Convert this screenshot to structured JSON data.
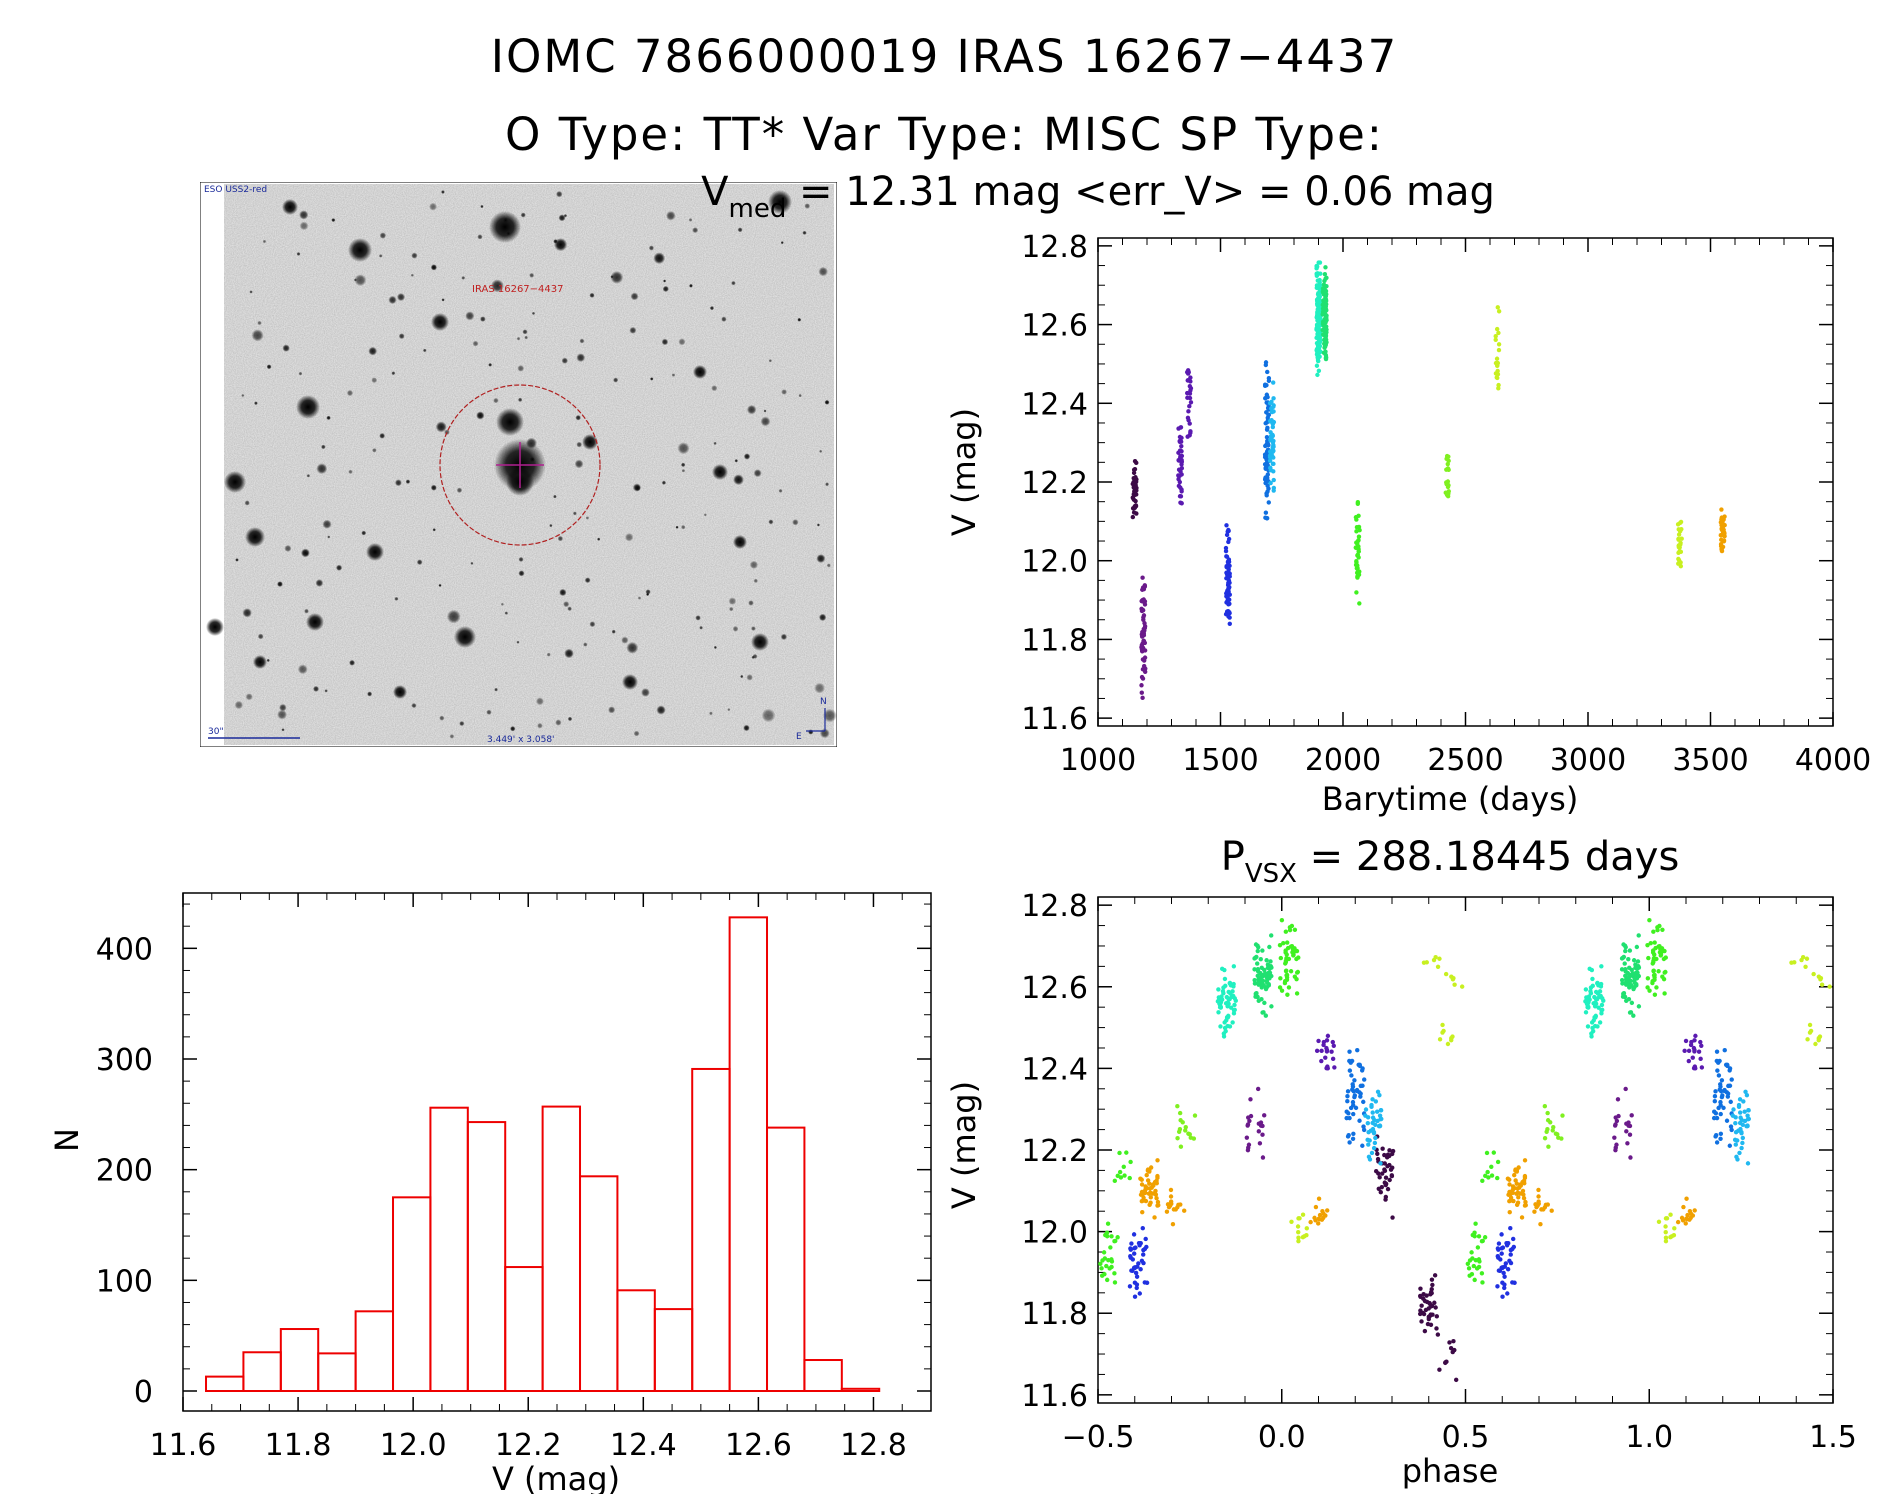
{
  "header": {
    "object_ids": "IOMC 7866000019    IRAS 16267−4437",
    "types": "O Type: TT*  Var Type: MISC  SP Type:"
  },
  "finder": {
    "survey_label": "ESO USS2-red",
    "target_label": "IRAS 16267−4437",
    "scale_label": "30\"",
    "fov_label": "3.449' x 3.058'",
    "compass_n": "N",
    "compass_e": "E"
  },
  "colors": {
    "histogram": "#ee0000",
    "epochs": [
      "#3c0a46",
      "#6a1a8a",
      "#5a1ab0",
      "#2030e0",
      "#1070e0",
      "#20b8f0",
      "#20f0c0",
      "#20e070",
      "#40f020",
      "#80f020",
      "#c8f020",
      "#f0a000"
    ]
  },
  "chart_data": [
    {
      "id": "light-curve",
      "type": "scatter",
      "title_prefix": "V",
      "title_sub": "med",
      "title_rest": " = 12.31 mag <err_V> = 0.06 mag",
      "xlabel": "Barytime (days)",
      "ylabel": "V (mag)",
      "xlim": [
        1000,
        4000
      ],
      "ylim": [
        12.82,
        11.58
      ],
      "xticks": [
        "1000",
        "1500",
        "2000",
        "2500",
        "3000",
        "3500",
        "4000"
      ],
      "yticks": [
        "11.6",
        "11.8",
        "12.0",
        "12.2",
        "12.4",
        "12.6",
        "12.8"
      ],
      "clusters": [
        {
          "t": 1150,
          "v0": 12.08,
          "v1": 12.27,
          "n": 40,
          "c": 0
        },
        {
          "t": 1185,
          "v0": 11.65,
          "v1": 11.96,
          "n": 55,
          "c": 1
        },
        {
          "t": 1335,
          "v0": 12.13,
          "v1": 12.37,
          "n": 40,
          "c": 2
        },
        {
          "t": 1372,
          "v0": 12.3,
          "v1": 12.51,
          "n": 25,
          "c": 2
        },
        {
          "t": 1530,
          "v0": 11.82,
          "v1": 12.1,
          "n": 70,
          "c": 3
        },
        {
          "t": 1690,
          "v0": 12.08,
          "v1": 12.53,
          "n": 70,
          "c": 4
        },
        {
          "t": 1710,
          "v0": 12.15,
          "v1": 12.48,
          "n": 50,
          "c": 5
        },
        {
          "t": 1900,
          "v0": 12.46,
          "v1": 12.77,
          "n": 150,
          "c": 6
        },
        {
          "t": 1925,
          "v0": 12.49,
          "v1": 12.75,
          "n": 100,
          "c": 7
        },
        {
          "t": 2060,
          "v0": 11.86,
          "v1": 12.17,
          "n": 40,
          "c": 8
        },
        {
          "t": 2425,
          "v0": 12.15,
          "v1": 12.29,
          "n": 20,
          "c": 9
        },
        {
          "t": 2630,
          "v0": 12.43,
          "v1": 12.67,
          "n": 20,
          "c": 10
        },
        {
          "t": 3375,
          "v0": 11.96,
          "v1": 12.11,
          "n": 25,
          "c": 10
        },
        {
          "t": 3550,
          "v0": 12.01,
          "v1": 12.15,
          "n": 40,
          "c": 11
        }
      ]
    },
    {
      "id": "histogram",
      "type": "bar",
      "xlabel": "V (mag)",
      "ylabel": "N",
      "xlim": [
        11.6,
        12.9
      ],
      "ylim": [
        0,
        450
      ],
      "bin_edges": [
        11.64,
        11.705,
        11.77,
        11.835,
        11.9,
        11.965,
        12.03,
        12.095,
        12.16,
        12.225,
        12.29,
        12.355,
        12.42,
        12.485,
        12.55,
        12.615,
        12.68,
        12.745,
        12.81
      ],
      "counts": [
        13,
        35,
        56,
        34,
        72,
        175,
        256,
        243,
        112,
        257,
        194,
        91,
        74,
        291,
        428,
        238,
        28,
        2
      ],
      "xticks": [
        "11.6",
        "11.8",
        "12.0",
        "12.2",
        "12.4",
        "12.6",
        "12.8"
      ],
      "yticks": [
        "0",
        "100",
        "200",
        "300",
        "400"
      ]
    },
    {
      "id": "phase-curve",
      "type": "scatter",
      "title_prefix": "P",
      "title_sub": "VSX",
      "title_rest": " = 288.18445 days",
      "xlabel": "phase",
      "ylabel": "V (mag)",
      "period_days": 288.18445,
      "xlim": [
        -0.5,
        1.5
      ],
      "ylim": [
        12.82,
        11.58
      ],
      "xticks": [
        "−0.5",
        "0.0",
        "0.5",
        "1.0",
        "1.5"
      ],
      "yticks": [
        "11.6",
        "11.8",
        "12.0",
        "12.2",
        "12.4",
        "12.6",
        "12.8"
      ],
      "clusters": [
        {
          "p": 0.4,
          "v0": 11.72,
          "v1": 11.9,
          "n": 40,
          "c": 0
        },
        {
          "p": 0.45,
          "v0": 11.62,
          "v1": 11.75,
          "n": 10,
          "c": 0
        },
        {
          "p": 0.28,
          "v0": 12.03,
          "v1": 12.26,
          "n": 40,
          "c": 0
        },
        {
          "p": 0.61,
          "v0": 11.83,
          "v1": 12.03,
          "n": 40,
          "c": 3
        },
        {
          "p": 0.64,
          "v0": 12.03,
          "v1": 12.18,
          "n": 50,
          "c": 11
        },
        {
          "p": 0.71,
          "v0": 12.01,
          "v1": 12.11,
          "n": 15,
          "c": 11
        },
        {
          "p": 0.53,
          "v0": 11.85,
          "v1": 12.05,
          "n": 25,
          "c": 8
        },
        {
          "p": 0.57,
          "v0": 12.05,
          "v1": 12.2,
          "n": 10,
          "c": 8
        },
        {
          "p": 0.74,
          "v0": 12.2,
          "v1": 12.32,
          "n": 15,
          "c": 9
        },
        {
          "p": 1.05,
          "v0": 11.96,
          "v1": 12.05,
          "n": 12,
          "c": 10
        },
        {
          "p": 1.1,
          "v0": 11.98,
          "v1": 12.1,
          "n": 15,
          "c": 11
        },
        {
          "p": 0.93,
          "v0": 12.15,
          "v1": 12.38,
          "n": 20,
          "c": 1
        },
        {
          "p": 1.12,
          "v0": 12.38,
          "v1": 12.51,
          "n": 20,
          "c": 2
        },
        {
          "p": 1.2,
          "v0": 12.2,
          "v1": 12.47,
          "n": 50,
          "c": 4
        },
        {
          "p": 1.25,
          "v0": 12.16,
          "v1": 12.35,
          "n": 40,
          "c": 5
        },
        {
          "p": 0.85,
          "v0": 12.46,
          "v1": 12.66,
          "n": 60,
          "c": 6
        },
        {
          "p": 0.95,
          "v0": 12.5,
          "v1": 12.74,
          "n": 70,
          "c": 7
        },
        {
          "p": 1.02,
          "v0": 12.55,
          "v1": 12.77,
          "n": 50,
          "c": 8
        },
        {
          "p": 1.45,
          "v0": 12.44,
          "v1": 12.52,
          "n": 8,
          "c": 10
        },
        {
          "p": 1.41,
          "v0": 12.64,
          "v1": 12.7,
          "n": 6,
          "c": 10
        },
        {
          "p": 1.47,
          "v0": 12.58,
          "v1": 12.65,
          "n": 6,
          "c": 10
        }
      ]
    }
  ]
}
